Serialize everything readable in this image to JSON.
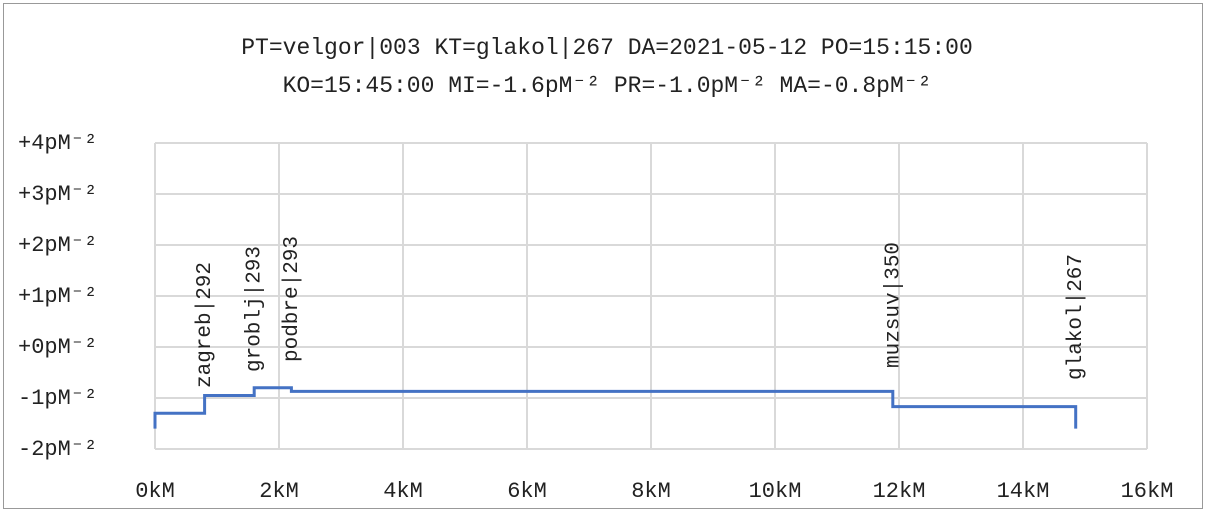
{
  "chart_data": {
    "type": "line",
    "title": [
      "PT=velgor|003 KT=glakol|267 DA=2021-05-12 PO=15:15:00",
      "KO=15:45:00 MI=-1.6pM⁻² PR=-1.0pM⁻² MA=-0.8pM⁻²"
    ],
    "series": [
      {
        "color": "#4472c4",
        "x": [
          0,
          0,
          0.8,
          0.8,
          1.6,
          1.6,
          2.2,
          2.2,
          11.9,
          11.9,
          14.85,
          14.85
        ],
        "values": [
          -1.6,
          -1.3,
          -1.3,
          -0.95,
          -0.95,
          -0.8,
          -0.8,
          -0.87,
          -0.87,
          -1.17,
          -1.17,
          -1.6
        ]
      }
    ],
    "annotations": [
      {
        "text": "zagreb|292",
        "x": 0.8
      },
      {
        "text": "groblj|293",
        "x": 1.6
      },
      {
        "text": "podbre|293",
        "x": 2.2
      },
      {
        "text": "muzsuv|350",
        "x": 11.9
      },
      {
        "text": "glakol|267",
        "x": 14.85
      }
    ],
    "xlim": [
      0,
      16
    ],
    "xticks": [
      {
        "value": 0,
        "label": "0kM"
      },
      {
        "value": 2,
        "label": "2kM"
      },
      {
        "value": 4,
        "label": "4kM"
      },
      {
        "value": 6,
        "label": "6kM"
      },
      {
        "value": 8,
        "label": "8kM"
      },
      {
        "value": 10,
        "label": "10kM"
      },
      {
        "value": 12,
        "label": "12kM"
      },
      {
        "value": 14,
        "label": "14kM"
      },
      {
        "value": 16,
        "label": "16kM"
      }
    ],
    "ylim": [
      -2,
      4
    ],
    "yticks": [
      {
        "value": -2,
        "label": "-2pM⁻²"
      },
      {
        "value": -1,
        "label": "-1pM⁻²"
      },
      {
        "value": 0,
        "label": "+0pM⁻²"
      },
      {
        "value": 1,
        "label": "+1pM⁻²"
      },
      {
        "value": 2,
        "label": "+2pM⁻²"
      },
      {
        "value": 3,
        "label": "+3pM⁻²"
      },
      {
        "value": 4,
        "label": "+4pM⁻²"
      }
    ],
    "grid": true
  }
}
